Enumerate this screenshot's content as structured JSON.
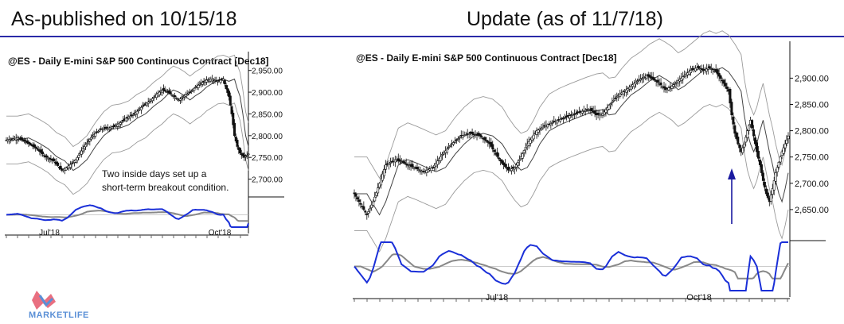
{
  "headers": {
    "left": "As-published on 10/15/18",
    "right": "Update (as of 11/7/18)"
  },
  "logo": {
    "text": "MARKETLIFE",
    "color": "#5a8fd6"
  },
  "colors": {
    "header_rule": "#2a2aa8",
    "oscillator": "#1a2fd8",
    "oscillator_signal": "#888888",
    "arrow": "#1a1aa0"
  },
  "chart_data": [
    {
      "type": "candlestick",
      "title": "@ES - Daily  E-mini S&P 500 Continuous Contract [Dec18]",
      "y_ticks": [
        "2,950.00",
        "2,900.00",
        "2,850.00",
        "2,800.00",
        "2,750.00",
        "2,700.00"
      ],
      "y_tick_values": [
        2950,
        2900,
        2850,
        2800,
        2750,
        2700
      ],
      "ylim": [
        2670,
        2975
      ],
      "x_ticks": [
        "Jul'18",
        "Oct'18"
      ],
      "annotation": [
        "Two inside days set up a",
        "short-term breakout condition."
      ],
      "close_path": [
        [
          0,
          2790
        ],
        [
          8,
          2795
        ],
        [
          16,
          2782
        ],
        [
          22,
          2770
        ],
        [
          28,
          2752
        ],
        [
          34,
          2742
        ],
        [
          40,
          2720
        ],
        [
          44,
          2728
        ],
        [
          50,
          2745
        ],
        [
          56,
          2775
        ],
        [
          62,
          2800
        ],
        [
          68,
          2815
        ],
        [
          74,
          2818
        ],
        [
          80,
          2825
        ],
        [
          86,
          2840
        ],
        [
          92,
          2850
        ],
        [
          98,
          2868
        ],
        [
          104,
          2882
        ],
        [
          108,
          2895
        ],
        [
          112,
          2905
        ],
        [
          116,
          2900
        ],
        [
          120,
          2892
        ],
        [
          124,
          2882
        ],
        [
          128,
          2892
        ],
        [
          132,
          2900
        ],
        [
          136,
          2912
        ],
        [
          140,
          2920
        ],
        [
          144,
          2928
        ],
        [
          148,
          2930
        ],
        [
          152,
          2925
        ],
        [
          156,
          2930
        ],
        [
          158,
          2908
        ],
        [
          160,
          2890
        ],
        [
          162,
          2850
        ],
        [
          164,
          2800
        ],
        [
          166,
          2775
        ],
        [
          168,
          2760
        ],
        [
          171,
          2750
        ],
        [
          174,
          2758
        ]
      ],
      "indicator": "oscillator"
    },
    {
      "type": "candlestick",
      "title": "@ES - Daily  E-mini S&P 500 Continuous Contract [Dec18]",
      "y_ticks": [
        "2,900.00",
        "2,850.00",
        "2,800.00",
        "2,750.00",
        "2,700.00",
        "2,650.00"
      ],
      "y_tick_values": [
        2900,
        2850,
        2800,
        2750,
        2700,
        2650
      ],
      "ylim": [
        2600,
        2955
      ],
      "x_ticks": [
        "Jul'18",
        "Oct'18"
      ],
      "arrow_annotation": "up-arrow",
      "close_path": [
        [
          0,
          2680
        ],
        [
          4,
          2660
        ],
        [
          8,
          2640
        ],
        [
          12,
          2665
        ],
        [
          16,
          2700
        ],
        [
          20,
          2735
        ],
        [
          26,
          2745
        ],
        [
          32,
          2738
        ],
        [
          38,
          2730
        ],
        [
          44,
          2722
        ],
        [
          50,
          2730
        ],
        [
          56,
          2755
        ],
        [
          62,
          2775
        ],
        [
          68,
          2790
        ],
        [
          74,
          2795
        ],
        [
          80,
          2790
        ],
        [
          86,
          2775
        ],
        [
          90,
          2755
        ],
        [
          94,
          2738
        ],
        [
          98,
          2725
        ],
        [
          102,
          2730
        ],
        [
          106,
          2750
        ],
        [
          110,
          2775
        ],
        [
          116,
          2800
        ],
        [
          122,
          2810
        ],
        [
          128,
          2818
        ],
        [
          134,
          2825
        ],
        [
          140,
          2832
        ],
        [
          146,
          2838
        ],
        [
          150,
          2840
        ],
        [
          154,
          2830
        ],
        [
          158,
          2832
        ],
        [
          162,
          2848
        ],
        [
          168,
          2868
        ],
        [
          174,
          2880
        ],
        [
          180,
          2895
        ],
        [
          186,
          2905
        ],
        [
          190,
          2898
        ],
        [
          194,
          2890
        ],
        [
          198,
          2878
        ],
        [
          202,
          2885
        ],
        [
          206,
          2895
        ],
        [
          210,
          2905
        ],
        [
          214,
          2915
        ],
        [
          218,
          2920
        ],
        [
          222,
          2915
        ],
        [
          226,
          2920
        ],
        [
          230,
          2912
        ],
        [
          234,
          2895
        ],
        [
          238,
          2875
        ],
        [
          240,
          2830
        ],
        [
          242,
          2795
        ],
        [
          244,
          2775
        ],
        [
          246,
          2760
        ],
        [
          248,
          2775
        ],
        [
          250,
          2800
        ],
        [
          252,
          2820
        ],
        [
          254,
          2790
        ],
        [
          256,
          2760
        ],
        [
          258,
          2735
        ],
        [
          260,
          2705
        ],
        [
          262,
          2680
        ],
        [
          264,
          2665
        ],
        [
          266,
          2690
        ],
        [
          268,
          2720
        ],
        [
          270,
          2740
        ],
        [
          272,
          2760
        ],
        [
          274,
          2775
        ],
        [
          276,
          2790
        ]
      ],
      "indicator": "oscillator"
    }
  ]
}
